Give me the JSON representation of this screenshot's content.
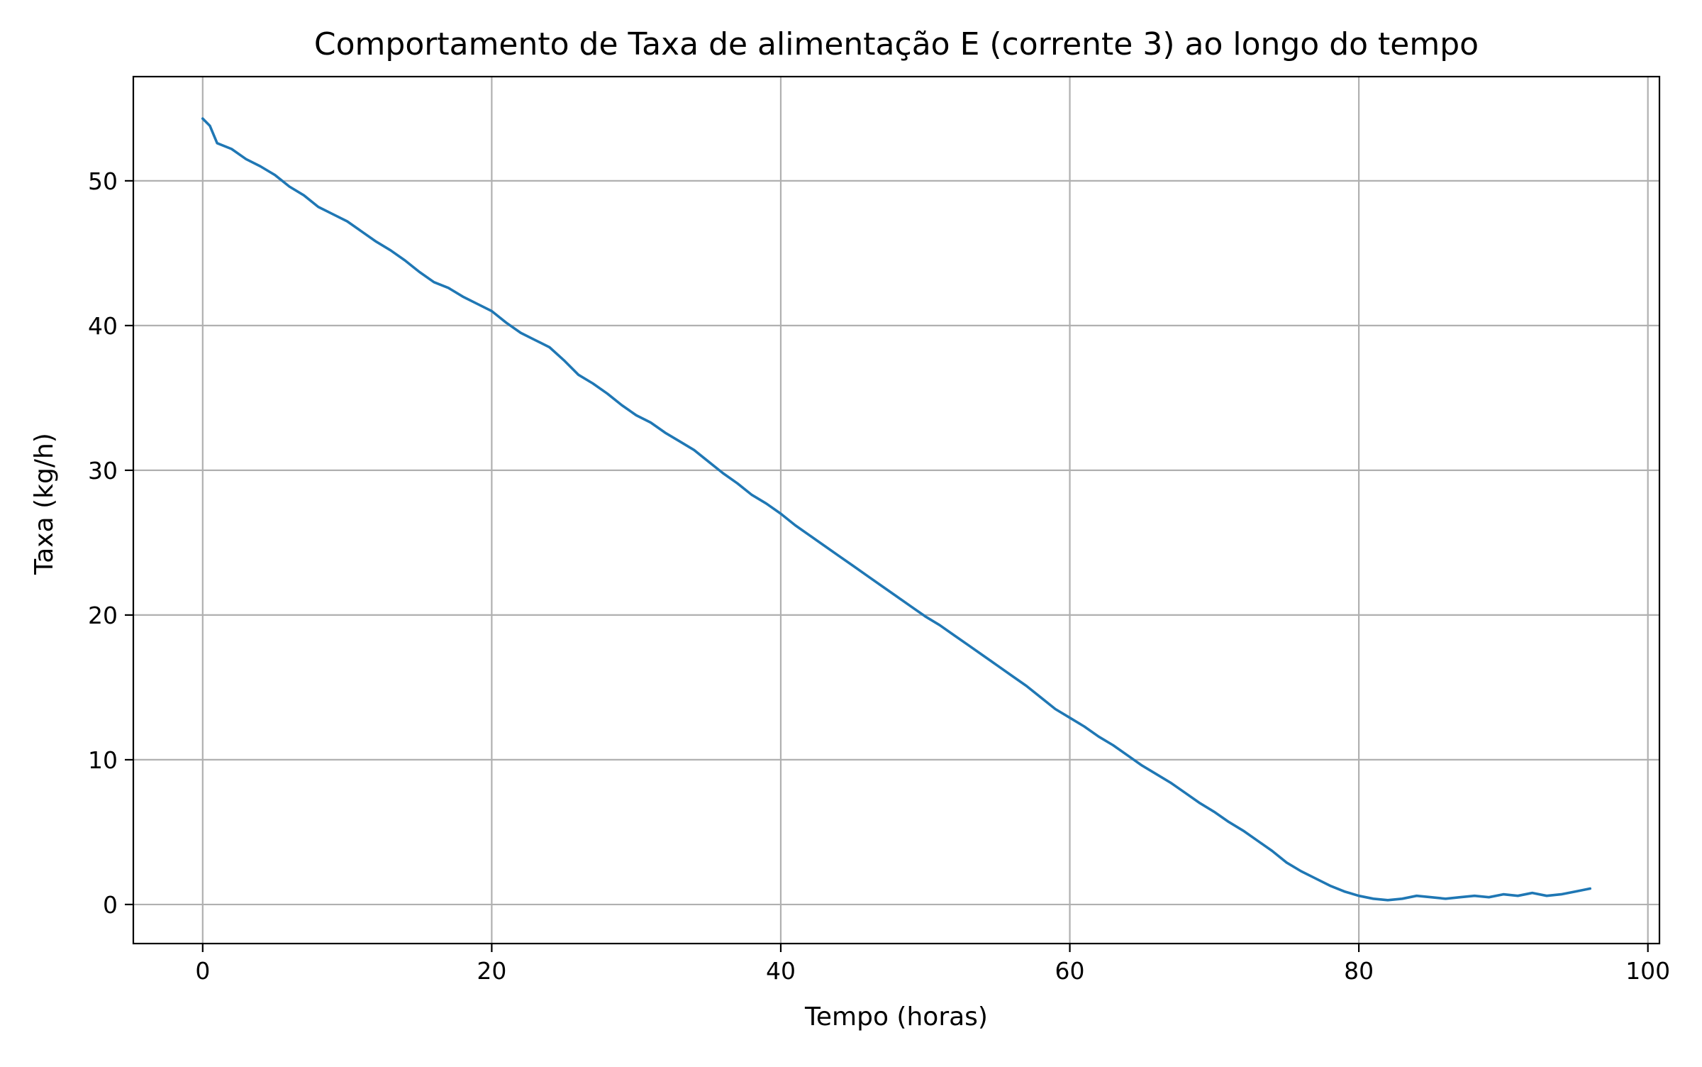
{
  "chart_data": {
    "type": "line",
    "title": "Comportamento de Taxa de alimentação E (corrente 3) ao longo do tempo",
    "xlabel": "Tempo (horas)",
    "ylabel": "Taxa (kg/h)",
    "xlim": [
      -4.8,
      100.8
    ],
    "ylim": [
      -2.7,
      57.2
    ],
    "xticks": [
      0,
      20,
      40,
      60,
      80,
      100
    ],
    "yticks": [
      0,
      10,
      20,
      30,
      40,
      50
    ],
    "grid": true,
    "legend": "none",
    "series": [
      {
        "color": "#1f77b4",
        "x": [
          0,
          0.5,
          1,
          2,
          3,
          4,
          5,
          6,
          7,
          8,
          9,
          10,
          11,
          12,
          13,
          14,
          15,
          16,
          17,
          18,
          19,
          20,
          21,
          22,
          23,
          24,
          25,
          26,
          27,
          28,
          29,
          30,
          31,
          32,
          33,
          34,
          35,
          36,
          37,
          38,
          39,
          40,
          41,
          42,
          43,
          44,
          45,
          46,
          47,
          48,
          49,
          50,
          51,
          52,
          53,
          54,
          55,
          56,
          57,
          58,
          59,
          60,
          61,
          62,
          63,
          64,
          65,
          66,
          67,
          68,
          69,
          70,
          71,
          72,
          73,
          74,
          75,
          76,
          77,
          78,
          79,
          80,
          81,
          82,
          83,
          84,
          85,
          86,
          87,
          88,
          89,
          90,
          91,
          92,
          93,
          94,
          95,
          96
        ],
        "y": [
          54.3,
          53.8,
          52.6,
          52.2,
          51.5,
          51.0,
          50.4,
          49.6,
          49.0,
          48.2,
          47.7,
          47.2,
          46.5,
          45.8,
          45.2,
          44.5,
          43.7,
          43.0,
          42.6,
          42.0,
          41.5,
          41.0,
          40.2,
          39.5,
          39.0,
          38.5,
          37.6,
          36.6,
          36.0,
          35.3,
          34.5,
          33.8,
          33.3,
          32.6,
          32.0,
          31.4,
          30.6,
          29.8,
          29.1,
          28.3,
          27.7,
          27.0,
          26.2,
          25.5,
          24.8,
          24.1,
          23.4,
          22.7,
          22.0,
          21.3,
          20.6,
          19.9,
          19.3,
          18.6,
          17.9,
          17.2,
          16.5,
          15.8,
          15.1,
          14.3,
          13.5,
          12.9,
          12.3,
          11.6,
          11.0,
          10.3,
          9.6,
          9.0,
          8.4,
          7.7,
          7.0,
          6.4,
          5.7,
          5.1,
          4.4,
          3.7,
          2.9,
          2.3,
          1.8,
          1.3,
          0.9,
          0.6,
          0.4,
          0.3,
          0.4,
          0.6,
          0.5,
          0.4,
          0.5,
          0.6,
          0.5,
          0.7,
          0.6,
          0.8,
          0.6,
          0.7,
          0.9,
          1.1
        ]
      }
    ]
  }
}
